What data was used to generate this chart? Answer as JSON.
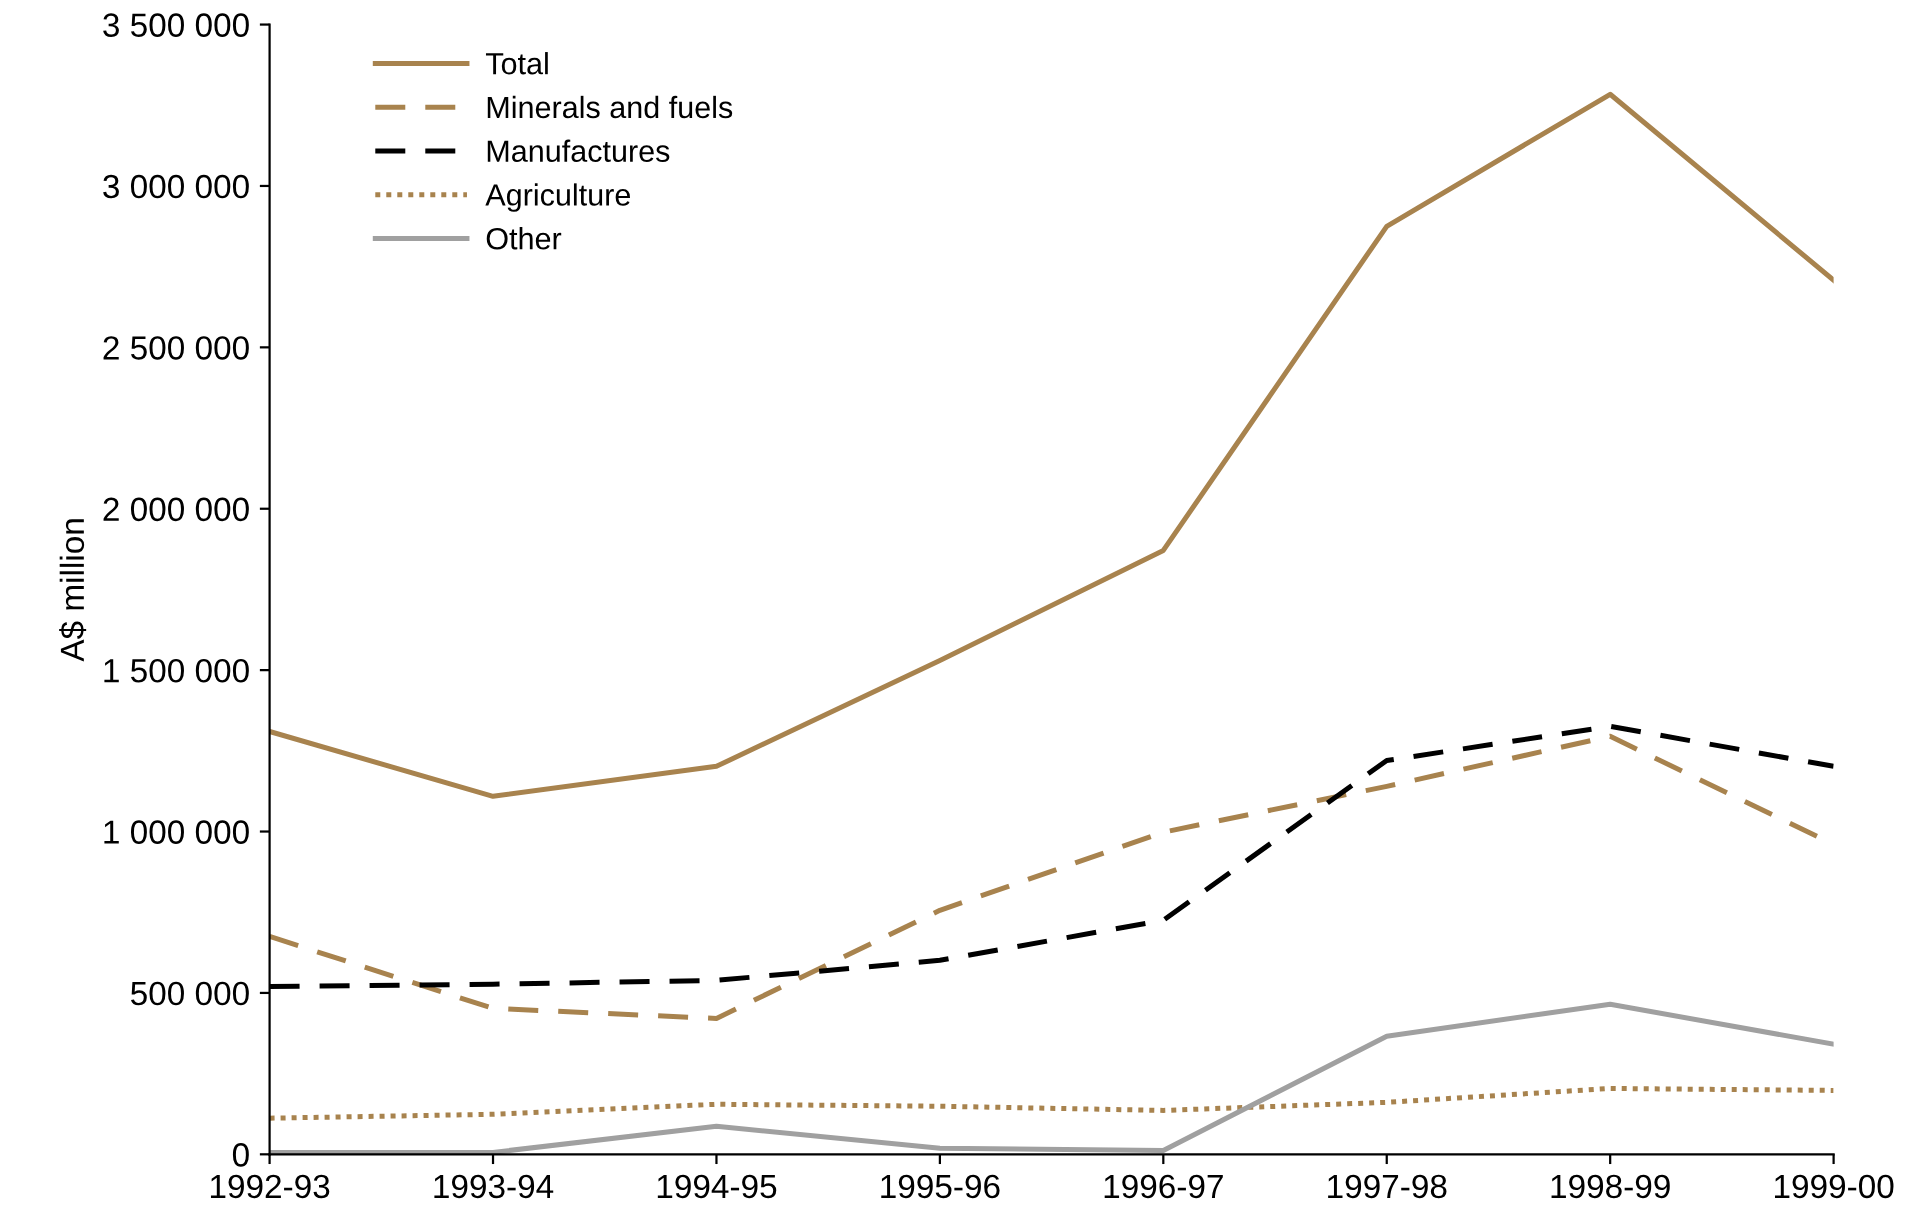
{
  "chart_data": {
    "type": "line",
    "ylabel": "A$ million",
    "categories": [
      "1992-93",
      "1993-94",
      "1994-95",
      "1995-96",
      "1996-97",
      "1997-98",
      "1998-99",
      "1999-00"
    ],
    "series": [
      {
        "name": "Total",
        "color": "#a8834e",
        "line_style": "solid",
        "values": [
          1310000,
          1109000,
          1202000,
          1530000,
          1871000,
          2875000,
          3284000,
          2708000
        ]
      },
      {
        "name": "Minerals and fuels",
        "color": "#a8834e",
        "line_style": "dashed",
        "values": [
          675000,
          452000,
          421000,
          756000,
          998000,
          1140000,
          1295000,
          960000
        ]
      },
      {
        "name": "Manufactures",
        "color": "#000000",
        "line_style": "dashed",
        "values": [
          520000,
          527000,
          539000,
          601000,
          725000,
          1220000,
          1326000,
          1202000
        ]
      },
      {
        "name": "Agriculture",
        "color": "#a8834e",
        "line_style": "dotted",
        "values": [
          112000,
          124000,
          155000,
          149000,
          136000,
          161000,
          204000,
          198000
        ]
      },
      {
        "name": "Other",
        "color": "#a0a0a0",
        "line_style": "solid",
        "values": [
          6000,
          6000,
          87000,
          19000,
          12000,
          366000,
          465000,
          341000
        ]
      }
    ],
    "ylim": [
      0,
      3500000
    ],
    "yticks": [
      0,
      {
        "value": 500000,
        "label": "500 000"
      },
      {
        "value": 1000000,
        "label": "1 000 000"
      },
      {
        "value": 1500000,
        "label": "1 500 000"
      },
      {
        "value": 2000000,
        "label": "2 000 000"
      },
      {
        "value": 2500000,
        "label": "2 500 000"
      },
      {
        "value": 3000000,
        "label": "3 000 000"
      },
      {
        "value": 3500000,
        "label": "3 500 000"
      }
    ],
    "grid": false,
    "legend": "top left",
    "marker": "none"
  }
}
